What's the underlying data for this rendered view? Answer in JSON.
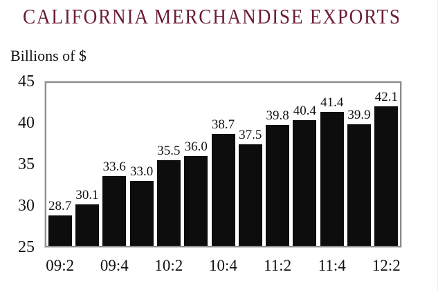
{
  "chart_data": {
    "type": "bar",
    "title": "CALIFORNIA MERCHANDISE EXPORTS",
    "ylabel": "Billions of $",
    "values": [
      28.7,
      30.1,
      33.6,
      33.0,
      35.5,
      36.0,
      38.7,
      37.5,
      39.8,
      40.4,
      41.4,
      39.9,
      42.1
    ],
    "bar_labels": [
      "28.7",
      "30.1",
      "33.6",
      "33.0",
      "35.5",
      "36.0",
      "38.7",
      "37.5",
      "39.8",
      "40.4",
      "41.4",
      "39.9",
      "42.1"
    ],
    "x_tick_labels": [
      "09:2",
      "09:4",
      "10:2",
      "10:4",
      "11:2",
      "11:4",
      "12:2"
    ],
    "x_tick_bar_indices": [
      0,
      2,
      4,
      6,
      8,
      10,
      12
    ],
    "y_ticks": [
      "45",
      "40",
      "35",
      "30",
      "25"
    ],
    "y_tick_values": [
      45,
      40,
      35,
      30,
      25
    ],
    "ylim": [
      25,
      45
    ],
    "grid": false,
    "legend_position": "none"
  },
  "colors": {
    "title": "#6b1c36",
    "bar": "#0d0d0d",
    "plot_border": "#8e8e8e",
    "text": "#111111"
  }
}
